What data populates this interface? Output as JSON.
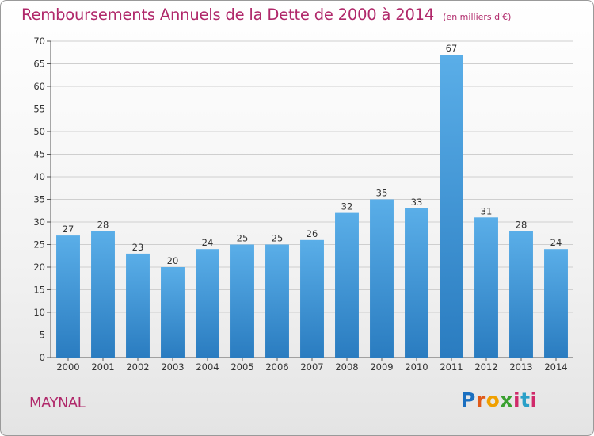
{
  "header": {
    "title": "Remboursements Annuels de la Dette de 2000 à 2014",
    "unit": "(en milliers d'€)"
  },
  "footer": {
    "commune": "MAYNAL",
    "logo": {
      "p": "P",
      "r": "r",
      "o": "o",
      "x": "x",
      "i1": "i",
      "t": "t",
      "i2": "i"
    }
  },
  "chart_data": {
    "type": "bar",
    "title": "Remboursements Annuels de la Dette de 2000 à 2014",
    "unit": "(en milliers d'€)",
    "categories": [
      "2000",
      "2001",
      "2002",
      "2003",
      "2004",
      "2005",
      "2006",
      "2007",
      "2008",
      "2009",
      "2010",
      "2011",
      "2012",
      "2013",
      "2014"
    ],
    "values": [
      27,
      28,
      23,
      20,
      24,
      25,
      25,
      26,
      32,
      35,
      33,
      67,
      31,
      28,
      24
    ],
    "ylim": [
      0,
      70
    ],
    "yticks": [
      0,
      5,
      10,
      15,
      20,
      25,
      30,
      35,
      40,
      45,
      50,
      55,
      60,
      65,
      70
    ],
    "grid": true,
    "colors": {
      "bar_top": "#5aaee8",
      "bar_bottom": "#2a7cc0",
      "grid": "#cfcfcf",
      "axis": "#555555"
    }
  }
}
